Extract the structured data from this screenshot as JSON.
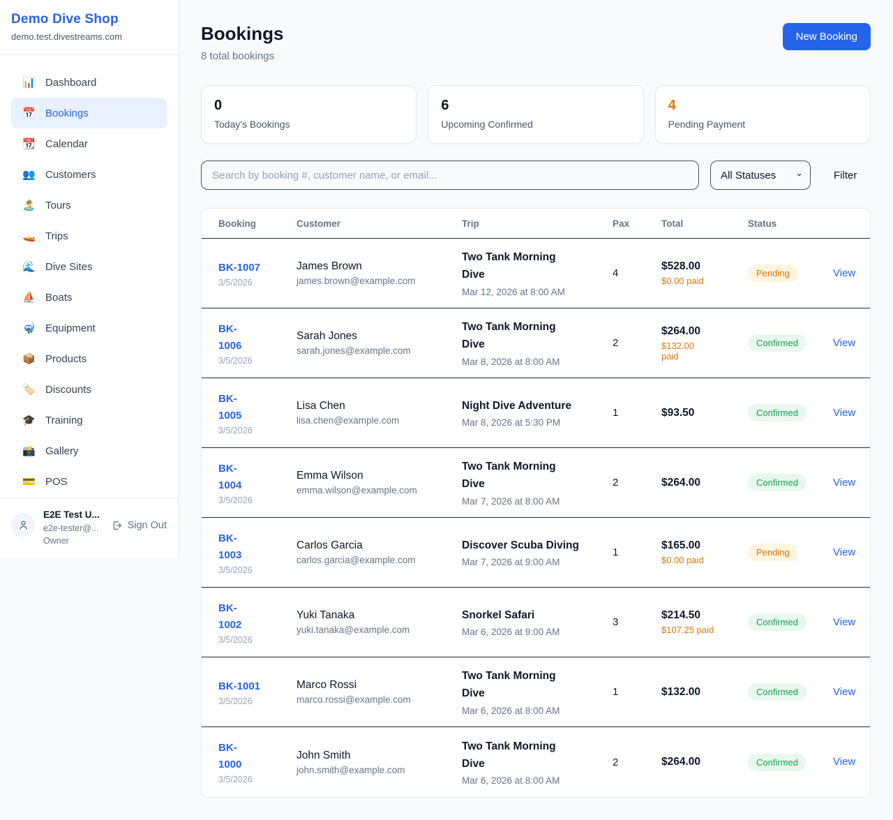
{
  "colors": {
    "accent": "#2563eb",
    "pending": "#d97706",
    "confirmed": "#16a34a"
  },
  "sidebar": {
    "brand": {
      "name": "Demo Dive Shop",
      "domain": "demo.test.divestreams.com"
    },
    "nav": [
      {
        "label": "Dashboard",
        "icon": "bar-chart-icon",
        "glyph": "📊",
        "active": false
      },
      {
        "label": "Bookings",
        "icon": "calendar-icon",
        "glyph": "📅",
        "active": true
      },
      {
        "label": "Calendar",
        "icon": "tear-off-calendar-icon",
        "glyph": "📆",
        "active": false
      },
      {
        "label": "Customers",
        "icon": "people-icon",
        "glyph": "👥",
        "active": false
      },
      {
        "label": "Tours",
        "icon": "island-icon",
        "glyph": "🏝️",
        "active": false
      },
      {
        "label": "Trips",
        "icon": "speedboat-icon",
        "glyph": "🚤",
        "active": false
      },
      {
        "label": "Dive Sites",
        "icon": "wave-icon",
        "glyph": "🌊",
        "active": false
      },
      {
        "label": "Boats",
        "icon": "sailboat-icon",
        "glyph": "⛵",
        "active": false
      },
      {
        "label": "Equipment",
        "icon": "diving-mask-icon",
        "glyph": "🤿",
        "active": false
      },
      {
        "label": "Products",
        "icon": "package-icon",
        "glyph": "📦",
        "active": false
      },
      {
        "label": "Discounts",
        "icon": "label-icon",
        "glyph": "🏷️",
        "active": false
      },
      {
        "label": "Training",
        "icon": "graduation-cap-icon",
        "glyph": "🎓",
        "active": false
      },
      {
        "label": "Gallery",
        "icon": "camera-icon",
        "glyph": "📸",
        "active": false
      },
      {
        "label": "POS",
        "icon": "credit-card-icon",
        "glyph": "💳",
        "active": false
      }
    ],
    "user": {
      "name": "E2E Test U...",
      "email": "e2e-tester@...",
      "role": "Owner",
      "sign_out": "Sign Out"
    }
  },
  "header": {
    "title": "Bookings",
    "subtitle": "8 total bookings",
    "new_booking_label": "New Booking"
  },
  "stats": [
    {
      "value": "0",
      "label": "Today's Bookings",
      "accent": false
    },
    {
      "value": "6",
      "label": "Upcoming Confirmed",
      "accent": false
    },
    {
      "value": "4",
      "label": "Pending Payment",
      "accent": true
    }
  ],
  "filters": {
    "search_placeholder": "Search by booking #, customer name, or email...",
    "status_selected": "All Statuses",
    "filter_label": "Filter"
  },
  "table": {
    "columns": [
      "Booking",
      "Customer",
      "Trip",
      "Pax",
      "Total",
      "Status"
    ],
    "view_label": "View",
    "rows": [
      {
        "id": "BK-1007",
        "date": "3/5/2026",
        "customer": "James Brown",
        "email": "james.brown@example.com",
        "trip": "Two Tank Morning Dive",
        "trip_date": "Mar 12, 2026 at 8:00 AM",
        "pax": "4",
        "total": "$528.00",
        "paid": "$0.00 paid",
        "status": "Pending"
      },
      {
        "id": "BK-1006",
        "date": "3/5/2026",
        "customer": "Sarah Jones",
        "email": "sarah.jones@example.com",
        "trip": "Two Tank Morning Dive",
        "trip_date": "Mar 8, 2026 at 8:00 AM",
        "pax": "2",
        "total": "$264.00",
        "paid": "$132.00 paid",
        "status": "Confirmed"
      },
      {
        "id": "BK-1005",
        "date": "3/5/2026",
        "customer": "Lisa Chen",
        "email": "lisa.chen@example.com",
        "trip": "Night Dive Adventure",
        "trip_date": "Mar 8, 2026 at 5:30 PM",
        "pax": "1",
        "total": "$93.50",
        "paid": "",
        "status": "Confirmed"
      },
      {
        "id": "BK-1004",
        "date": "3/5/2026",
        "customer": "Emma Wilson",
        "email": "emma.wilson@example.com",
        "trip": "Two Tank Morning Dive",
        "trip_date": "Mar 7, 2026 at 8:00 AM",
        "pax": "2",
        "total": "$264.00",
        "paid": "",
        "status": "Confirmed"
      },
      {
        "id": "BK-1003",
        "date": "3/5/2026",
        "customer": "Carlos Garcia",
        "email": "carlos.garcia@example.com",
        "trip": "Discover Scuba Diving",
        "trip_date": "Mar 7, 2026 at 9:00 AM",
        "pax": "1",
        "total": "$165.00",
        "paid": "$0.00 paid",
        "status": "Pending"
      },
      {
        "id": "BK-1002",
        "date": "3/5/2026",
        "customer": "Yuki Tanaka",
        "email": "yuki.tanaka@example.com",
        "trip": "Snorkel Safari",
        "trip_date": "Mar 6, 2026 at 9:00 AM",
        "pax": "3",
        "total": "$214.50",
        "paid": "$107.25 paid",
        "status": "Confirmed"
      },
      {
        "id": "BK-1001",
        "date": "3/5/2026",
        "customer": "Marco Rossi",
        "email": "marco.rossi@example.com",
        "trip": "Two Tank Morning Dive",
        "trip_date": "Mar 6, 2026 at 8:00 AM",
        "pax": "1",
        "total": "$132.00",
        "paid": "",
        "status": "Confirmed"
      },
      {
        "id": "BK-1000",
        "date": "3/5/2026",
        "customer": "John Smith",
        "email": "john.smith@example.com",
        "trip": "Two Tank Morning Dive",
        "trip_date": "Mar 6, 2026 at 8:00 AM",
        "pax": "2",
        "total": "$264.00",
        "paid": "",
        "status": "Confirmed"
      }
    ]
  }
}
